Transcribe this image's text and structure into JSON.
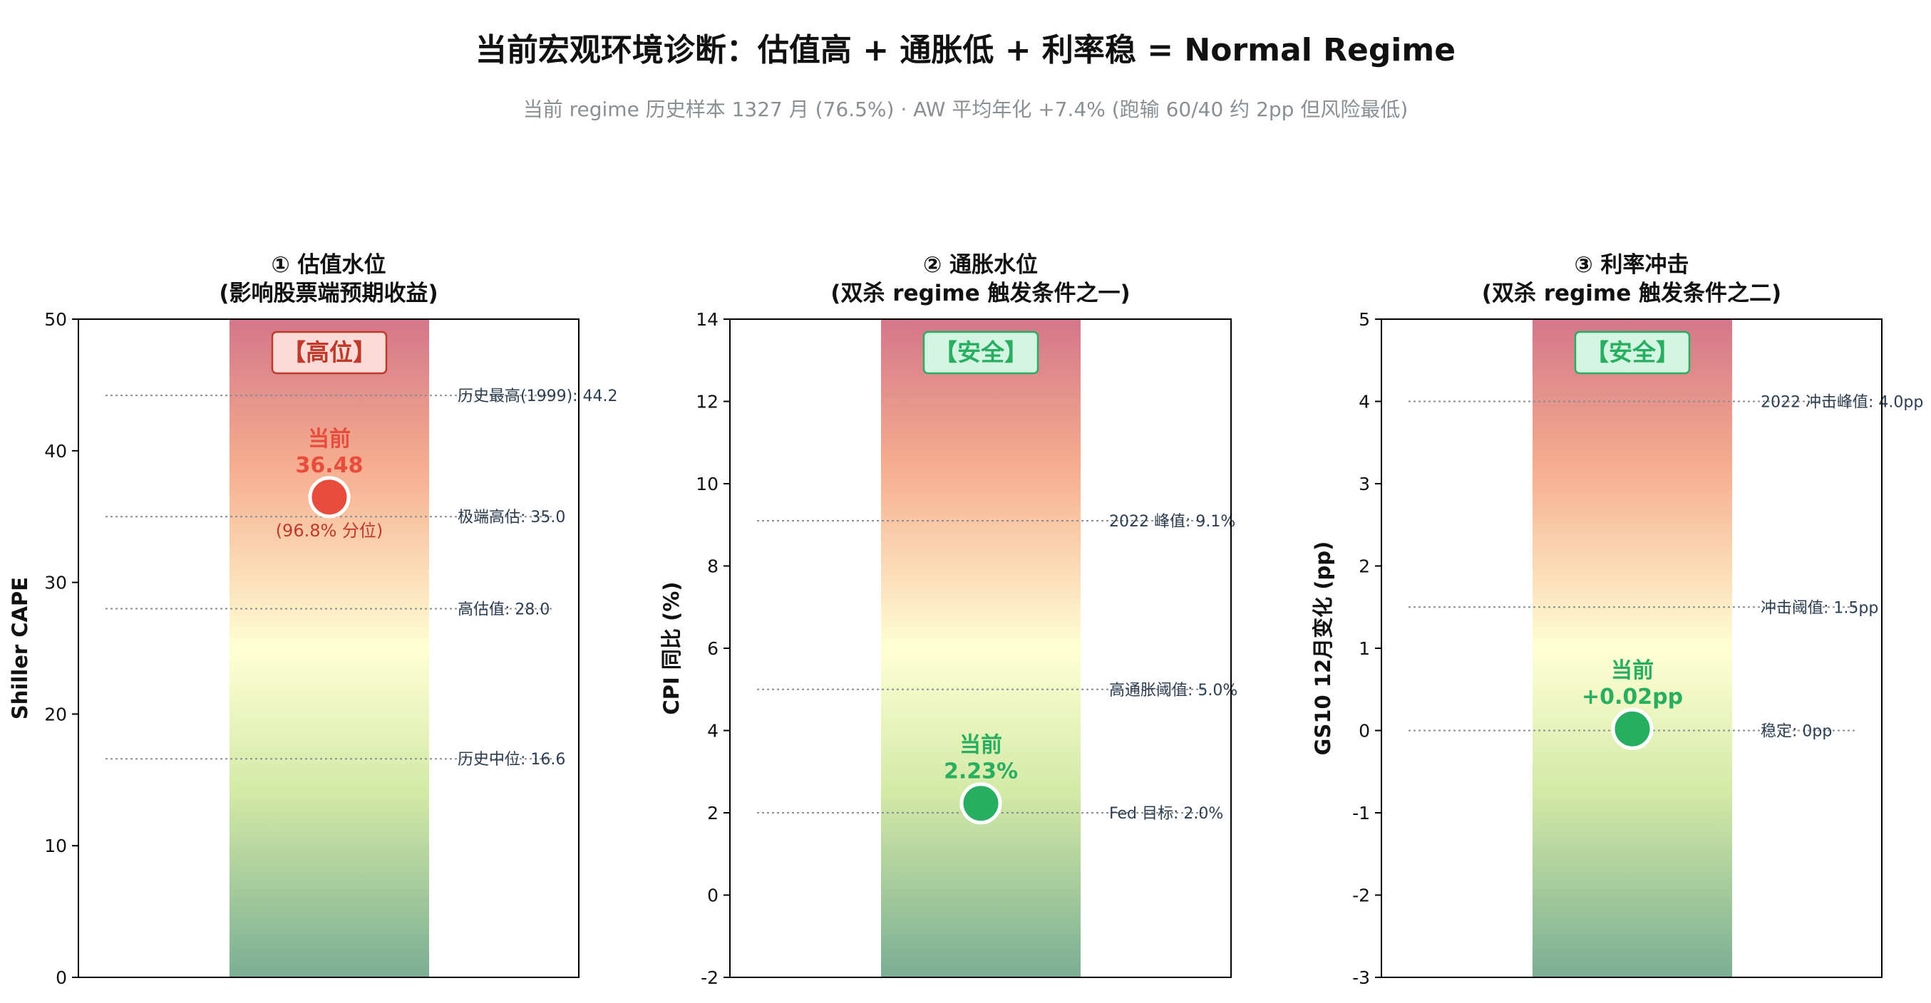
{
  "title": "当前宏观环境诊断：估值高 + 通胀低 + 利率稳 = Normal Regime",
  "subtitle": "当前 regime 历史样本 1327 月 (76.5%) · AW 平均年化 +7.4% (跑输 60/40 约 2pp 但风险最低)",
  "colors": {
    "gradient_top": "#d4768a",
    "gradient_mid": "#ffffd4",
    "gradient_bottom": "#7aae93",
    "danger": "#e74c3c",
    "danger_dark": "#c0392b",
    "danger_bg": "#fadbd8",
    "safe": "#27ae60",
    "safe_bg": "#d5f5e3",
    "ref_line": "#8a8f94",
    "ref_text": "#2c3e50"
  },
  "chart_data": [
    {
      "type": "gauge",
      "title_line1": "① 估值水位",
      "title_line2": "(影响股票端预期收益)",
      "ylabel": "Shiller CAPE",
      "ylim": [
        0,
        50
      ],
      "yticks": [
        "0",
        "10",
        "20",
        "30",
        "40",
        "50"
      ],
      "ytick_values": [
        0,
        10,
        20,
        30,
        40,
        50
      ],
      "status_badge": "【高位】",
      "status": "danger",
      "current_label": "当前",
      "current_value": 36.48,
      "current_value_label": "36.48",
      "current_percentile_label": "(96.8% 分位)",
      "reference_lines": [
        {
          "value": 44.2,
          "label": "历史最高(1999): 44.2"
        },
        {
          "value": 35.0,
          "label": "极端高估: 35.0"
        },
        {
          "value": 28.0,
          "label": "高估值: 28.0"
        },
        {
          "value": 16.6,
          "label": "历史中位: 16.6"
        }
      ]
    },
    {
      "type": "gauge",
      "title_line1": "② 通胀水位",
      "title_line2": "(双杀 regime 触发条件之一)",
      "ylabel": "CPI 同比 (%)",
      "ylim": [
        -2,
        14
      ],
      "yticks": [
        "-2",
        "0",
        "2",
        "4",
        "6",
        "8",
        "10",
        "12",
        "14"
      ],
      "ytick_values": [
        -2,
        0,
        2,
        4,
        6,
        8,
        10,
        12,
        14
      ],
      "status_badge": "【安全】",
      "status": "safe",
      "current_label": "当前",
      "current_value": 2.23,
      "current_value_label": "2.23%",
      "reference_lines": [
        {
          "value": 9.1,
          "label": "2022 峰值: 9.1%"
        },
        {
          "value": 5.0,
          "label": "高通胀阈值: 5.0%"
        },
        {
          "value": 2.0,
          "label": "Fed 目标: 2.0%"
        }
      ]
    },
    {
      "type": "gauge",
      "title_line1": "③ 利率冲击",
      "title_line2": "(双杀 regime 触发条件之二)",
      "ylabel": "GS10 12月变化 (pp)",
      "ylim": [
        -3,
        5
      ],
      "yticks": [
        "-3",
        "-2",
        "-1",
        "0",
        "1",
        "2",
        "3",
        "4",
        "5"
      ],
      "ytick_values": [
        -3,
        -2,
        -1,
        0,
        1,
        2,
        3,
        4,
        5
      ],
      "status_badge": "【安全】",
      "status": "safe",
      "current_label": "当前",
      "current_value": 0.02,
      "current_value_label": "+0.02pp",
      "reference_lines": [
        {
          "value": 4.0,
          "label": "2022 冲击峰值: 4.0pp"
        },
        {
          "value": 1.5,
          "label": "冲击阈值: 1.5pp"
        },
        {
          "value": 0.0,
          "label": "稳定: 0pp"
        }
      ]
    }
  ]
}
